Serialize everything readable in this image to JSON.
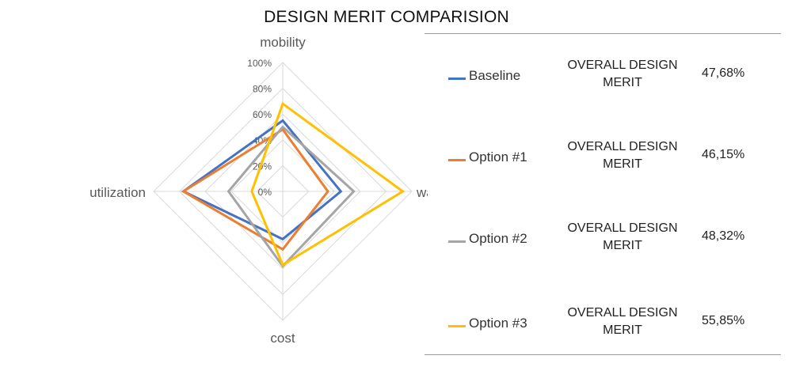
{
  "title": "DESIGN MERIT COMPARISION",
  "merit_label": "OVERALL DESIGN MERIT",
  "colors": {
    "grid": "#d9d9d9",
    "axis_text": "#595959",
    "tick_text": "#595959",
    "rule": "#9a9a9a"
  },
  "chart_data": {
    "type": "radar",
    "title": "DESIGN MERIT COMPARISION",
    "axes": [
      "mobility",
      "waiting time",
      "cost",
      "utilization"
    ],
    "ticks": [
      "0%",
      "20%",
      "40%",
      "60%",
      "80%",
      "100%"
    ],
    "rlim": [
      0,
      100
    ],
    "series": [
      {
        "name": "Baseline",
        "color": "#4472C4",
        "values": [
          55,
          45,
          37,
          77
        ],
        "merit": "47,68%"
      },
      {
        "name": "Option #1",
        "color": "#ED7D31",
        "values": [
          48,
          35,
          45,
          77
        ],
        "merit": "46,15%"
      },
      {
        "name": "Option #2",
        "color": "#A5A5A5",
        "values": [
          50,
          55,
          58,
          42
        ],
        "merit": "48,32%"
      },
      {
        "name": "Option #3",
        "color": "#FFC000",
        "values": [
          68,
          93,
          57,
          24
        ],
        "merit": "55,85%"
      }
    ]
  }
}
